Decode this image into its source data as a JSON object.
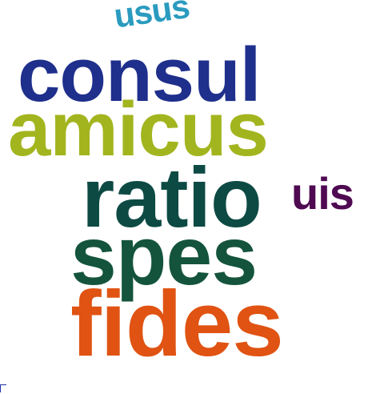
{
  "words": {
    "usus": {
      "text": "usus",
      "color": "#2a9bbf"
    },
    "consul": {
      "text": "consul",
      "color": "#1f2f8c"
    },
    "amicus": {
      "text": "amicus",
      "color": "#a3b51e"
    },
    "ratio": {
      "text": "ratio",
      "color": "#0d4a44"
    },
    "uis": {
      "text": "uis",
      "color": "#4f0a52"
    },
    "spes": {
      "text": "spes",
      "color": "#14543c"
    },
    "fides": {
      "text": "fides",
      "color": "#e05312"
    }
  }
}
